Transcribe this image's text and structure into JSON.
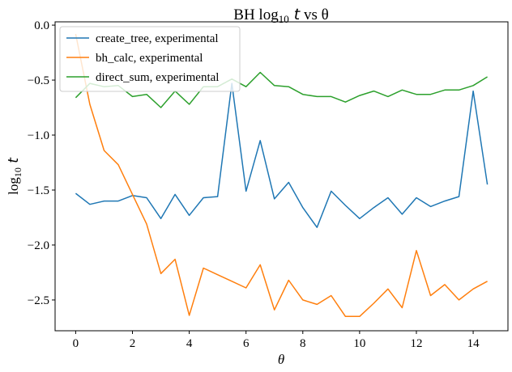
{
  "chart_data": {
    "type": "line",
    "title_parts": {
      "prefix": "BH log",
      "sub": "10",
      "mid": " t",
      "suffix": " vs θ"
    },
    "xlabel": "θ",
    "ylabel_parts": {
      "prefix": "log",
      "sub": "10",
      "suffix": " t"
    },
    "xlim": [
      -0.725,
      15.225
    ],
    "ylim": [
      -2.78,
      0.03
    ],
    "xticks": [
      0,
      2,
      4,
      6,
      8,
      10,
      12,
      14
    ],
    "xtick_labels": [
      "0",
      "2",
      "4",
      "6",
      "8",
      "10",
      "12",
      "14"
    ],
    "yticks": [
      0.0,
      -0.5,
      -1.0,
      -1.5,
      -2.0,
      -2.5
    ],
    "ytick_labels": [
      "0.0",
      "−0.5",
      "−1.0",
      "−1.5",
      "−2.0",
      "−2.5"
    ],
    "grid": false,
    "legend_position": "top-left",
    "x": [
      0,
      0.5,
      1,
      1.5,
      2,
      2.5,
      3,
      3.5,
      4,
      4.5,
      5,
      5.5,
      6,
      6.5,
      7,
      7.5,
      8,
      8.5,
      9,
      9.5,
      10,
      10.5,
      11,
      11.5,
      12,
      12.5,
      13,
      13.5,
      14,
      14.5
    ],
    "series": [
      {
        "name": "create_tree, experimental",
        "color": "#1f77b4",
        "values": [
          -1.53,
          -1.63,
          -1.6,
          -1.6,
          -1.55,
          -1.57,
          -1.76,
          -1.54,
          -1.73,
          -1.57,
          -1.56,
          -0.53,
          -1.51,
          -1.05,
          -1.58,
          -1.43,
          -1.66,
          -1.84,
          -1.51,
          -1.64,
          -1.76,
          -1.66,
          -1.57,
          -1.72,
          -1.57,
          -1.65,
          -1.6,
          -1.56,
          -0.6,
          -1.45
        ]
      },
      {
        "name": "bh_calc, experimental",
        "color": "#ff7f0e",
        "values": [
          -0.08,
          -0.72,
          -1.14,
          -1.27,
          -1.54,
          -1.81,
          -2.26,
          -2.13,
          -2.64,
          -2.21,
          -2.27,
          -2.33,
          -2.39,
          -2.18,
          -2.59,
          -2.32,
          -2.5,
          -2.54,
          -2.46,
          -2.65,
          -2.65,
          -2.53,
          -2.4,
          -2.57,
          -2.05,
          -2.46,
          -2.36,
          -2.5,
          -2.4,
          -2.33
        ]
      },
      {
        "name": "direct_sum, experimental",
        "color": "#2ca02c",
        "values": [
          -0.66,
          -0.53,
          -0.56,
          -0.55,
          -0.65,
          -0.63,
          -0.75,
          -0.6,
          -0.72,
          -0.56,
          -0.56,
          -0.49,
          -0.56,
          -0.43,
          -0.55,
          -0.56,
          -0.63,
          -0.65,
          -0.65,
          -0.7,
          -0.64,
          -0.6,
          -0.65,
          -0.59,
          -0.63,
          -0.63,
          -0.59,
          -0.59,
          -0.55,
          -0.47
        ]
      }
    ]
  }
}
